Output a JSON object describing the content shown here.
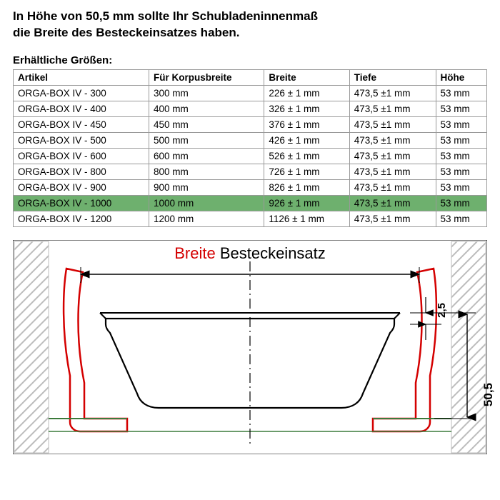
{
  "heading_line1": "In Höhe von 50,5 mm sollte Ihr Schubladeninnenmaß",
  "heading_line2": "die Breite des Besteckeinsatzes haben.",
  "subheading": "Erhältliche Größen:",
  "columns": [
    "Artikel",
    "Für Korpusbreite",
    "Breite",
    "Tiefe",
    "Höhe"
  ],
  "rows": [
    {
      "cells": [
        "ORGA-BOX IV - 300",
        "300 mm",
        "226 ± 1 mm",
        "473,5 ±1 mm",
        "53 mm"
      ],
      "highlight": false
    },
    {
      "cells": [
        "ORGA-BOX IV - 400",
        "400 mm",
        "326 ± 1 mm",
        "473,5 ±1 mm",
        "53 mm"
      ],
      "highlight": false
    },
    {
      "cells": [
        "ORGA-BOX IV - 450",
        "450 mm",
        "376 ± 1 mm",
        "473,5 ±1 mm",
        "53 mm"
      ],
      "highlight": false
    },
    {
      "cells": [
        "ORGA-BOX IV - 500",
        "500 mm",
        "426 ± 1 mm",
        "473,5 ±1 mm",
        "53 mm"
      ],
      "highlight": false
    },
    {
      "cells": [
        "ORGA-BOX IV - 600",
        "600 mm",
        "526 ± 1 mm",
        "473,5 ±1 mm",
        "53 mm"
      ],
      "highlight": false
    },
    {
      "cells": [
        "ORGA-BOX IV - 800",
        "800 mm",
        "726 ± 1 mm",
        "473,5 ±1 mm",
        "53 mm"
      ],
      "highlight": false
    },
    {
      "cells": [
        "ORGA-BOX IV - 900",
        "900 mm",
        "826 ± 1 mm",
        "473,5 ±1 mm",
        "53 mm"
      ],
      "highlight": false
    },
    {
      "cells": [
        "ORGA-BOX IV - 1000",
        "1000 mm",
        "926 ± 1 mm",
        "473,5 ±1 mm",
        "53 mm"
      ],
      "highlight": true
    },
    {
      "cells": [
        "ORGA-BOX IV - 1200",
        "1200 mm",
        "1126 ± 1 mm",
        "473,5 ±1 mm",
        "53 mm"
      ],
      "highlight": false
    }
  ],
  "diagram": {
    "title_red": "Breite",
    "title_black": " Besteckeinsatz",
    "dim_v1": "2,5",
    "dim_v2": "50,5",
    "colors": {
      "hatch": "#bdbdbd",
      "red": "#d40000",
      "green_stroke": "#3a7a3a",
      "black": "#000000",
      "centerline": "#000000"
    }
  }
}
